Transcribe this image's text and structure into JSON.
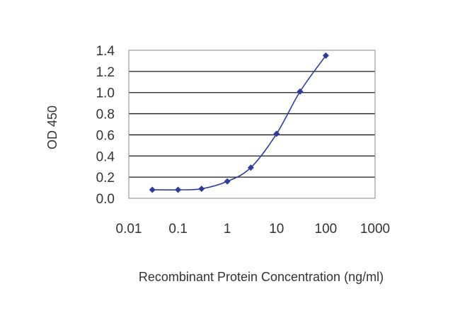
{
  "chart_data": {
    "type": "line",
    "title": "",
    "xlabel": "Recombinant Protein Concentration (ng/ml)",
    "ylabel": "OD 450",
    "x_scale": "log",
    "xlim": [
      0.01,
      1000
    ],
    "ylim": [
      0,
      1.4
    ],
    "x_ticks": [
      0.01,
      0.1,
      1,
      10,
      100,
      1000
    ],
    "x_tick_labels": [
      "0.01",
      "0.1",
      "1",
      "10",
      "100",
      "1000"
    ],
    "y_ticks": [
      0,
      0.2,
      0.4,
      0.6,
      0.8,
      1.0,
      1.2,
      1.4
    ],
    "y_tick_labels": [
      "0.0",
      "0.2",
      "0.4",
      "0.6",
      "0.8",
      "1.0",
      "1.2",
      "1.4"
    ],
    "grid": "horizontal",
    "legend": "none",
    "series": [
      {
        "color": "#2e3d9a",
        "marker": "diamond",
        "x": [
          0.03,
          0.1,
          0.3,
          1,
          3,
          10,
          30,
          100
        ],
        "y": [
          0.08,
          0.08,
          0.09,
          0.16,
          0.29,
          0.61,
          1.01,
          1.35
        ]
      }
    ],
    "colors": {
      "line": "#2e3d9a",
      "grid": "#1a1a1a",
      "frame": "#9a9a9a"
    }
  }
}
